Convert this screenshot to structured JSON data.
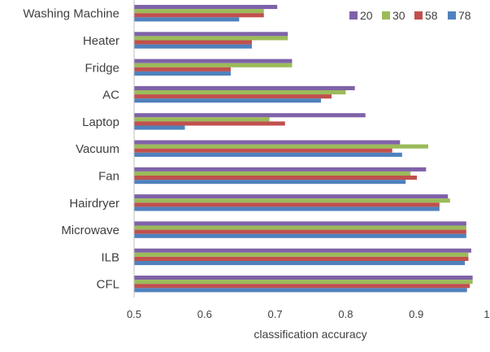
{
  "chart_data": {
    "type": "bar",
    "orientation": "horizontal",
    "categories": [
      "Washing Machine",
      "Heater",
      "Fridge",
      "AC",
      "Laptop",
      "Vacuum",
      "Fan",
      "Hairdryer",
      "Microwave",
      "ILB",
      "CFL"
    ],
    "series": [
      {
        "name": "20",
        "color": "#7f62a8",
        "values": [
          0.703,
          0.718,
          0.724,
          0.813,
          0.828,
          0.877,
          0.914,
          0.945,
          0.971,
          0.978,
          0.98
        ]
      },
      {
        "name": "30",
        "color": "#9bbb59",
        "values": [
          0.684,
          0.718,
          0.724,
          0.8,
          0.692,
          0.917,
          0.892,
          0.948,
          0.971,
          0.974,
          0.98
        ]
      },
      {
        "name": "58",
        "color": "#c0504d",
        "values": [
          0.684,
          0.667,
          0.637,
          0.78,
          0.714,
          0.866,
          0.901,
          0.933,
          0.971,
          0.974,
          0.976
        ]
      },
      {
        "name": "78",
        "color": "#4f81bd",
        "values": [
          0.649,
          0.667,
          0.637,
          0.765,
          0.572,
          0.88,
          0.885,
          0.933,
          0.971,
          0.969,
          0.972
        ]
      }
    ],
    "xlabel": "classification accuracy",
    "ylabel": "",
    "xlim": [
      0.5,
      1
    ],
    "ticks": [
      "0.5",
      "0.6",
      "0.7",
      "0.8",
      "0.9",
      "1"
    ],
    "grid": false,
    "legend_position": "top-right"
  }
}
